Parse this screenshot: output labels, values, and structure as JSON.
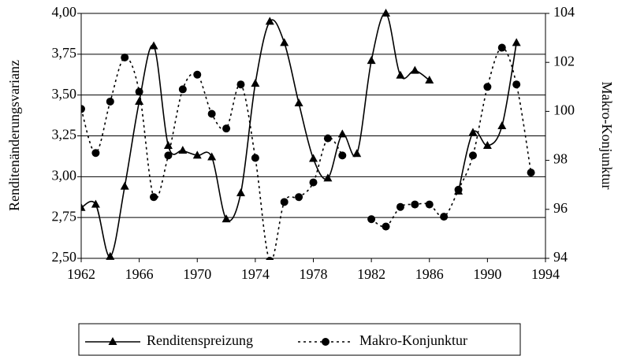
{
  "chart_data": {
    "type": "line",
    "ylabel": "Renditenänderungsvarianz",
    "y2label": "Makro-Konjunktur",
    "x": [
      1962,
      1963,
      1964,
      1965,
      1966,
      1967,
      1968,
      1969,
      1970,
      1971,
      1972,
      1973,
      1974,
      1975,
      1976,
      1977,
      1978,
      1979,
      1980,
      1981,
      1982,
      1983,
      1984,
      1985,
      1986,
      1987,
      1988,
      1989,
      1990,
      1991,
      1992,
      1993
    ],
    "xlim": [
      1962,
      1994
    ],
    "xticks": [
      1962,
      1966,
      1970,
      1974,
      1978,
      1982,
      1986,
      1990,
      1994
    ],
    "ylim": [
      2.5,
      4.0
    ],
    "yticks": [
      {
        "value": 2.5,
        "label": "2,50"
      },
      {
        "value": 2.75,
        "label": "2,75"
      },
      {
        "value": 3.0,
        "label": "3,00"
      },
      {
        "value": 3.25,
        "label": "3,25"
      },
      {
        "value": 3.5,
        "label": "3,50"
      },
      {
        "value": 3.75,
        "label": "3,75"
      },
      {
        "value": 4.0,
        "label": "4,00"
      }
    ],
    "y2lim": [
      94,
      104
    ],
    "y2ticks": [
      94,
      96,
      98,
      100,
      102,
      104
    ],
    "grid": true,
    "series": [
      {
        "name": "Renditenspreizung",
        "color": "#000000",
        "marker": "triangle",
        "values": [
          2.81,
          2.83,
          2.51,
          2.94,
          3.46,
          3.8,
          3.19,
          3.16,
          3.13,
          3.12,
          2.74,
          2.9,
          3.57,
          3.95,
          3.82,
          3.45,
          3.11,
          2.99,
          3.26,
          3.14,
          3.71,
          4.0,
          3.62,
          3.65,
          3.59,
          null,
          2.91,
          3.27,
          3.19,
          3.31,
          3.82,
          null
        ]
      },
      {
        "name": "Makro-Konjunktur",
        "color": "#000000",
        "marker": "circle",
        "axis": "y2",
        "dashed": true,
        "values": [
          100.1,
          98.3,
          100.4,
          102.2,
          100.8,
          96.5,
          98.2,
          100.9,
          101.5,
          99.9,
          99.3,
          101.1,
          98.1,
          93.9,
          96.3,
          96.5,
          97.1,
          98.9,
          98.2,
          null,
          95.6,
          95.3,
          96.1,
          96.2,
          96.2,
          95.7,
          96.8,
          98.2,
          101.0,
          102.6,
          101.1,
          97.5
        ]
      }
    ]
  }
}
